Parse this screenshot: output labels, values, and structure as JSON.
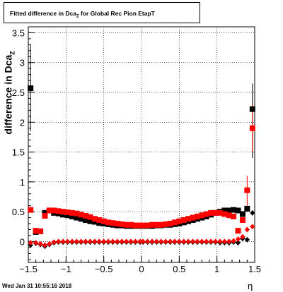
{
  "title_prefix": "Fitted difference in Dca",
  "title_sub": "Z",
  "title_suffix": " for Global Rec Pion EtapT",
  "ylabel": "difference in Dca",
  "ylabel_sub": "Z",
  "xlabel": "η",
  "timestamp": "Wed Jan 31 10:55:16 2018",
  "chart_data": {
    "type": "scatter",
    "xlim": [
      -1.5,
      1.5
    ],
    "ylim": [
      -0.35,
      3.6
    ],
    "grid": true,
    "x_ticks": [
      -1.5,
      -1,
      -0.5,
      0,
      0.5,
      1,
      1.5
    ],
    "x_tick_labels": [
      "−1.5",
      "−1",
      "−0.5",
      "0",
      "0.5",
      "1",
      "1.5"
    ],
    "y_ticks": [
      0,
      0.5,
      1,
      1.5,
      2,
      2.5,
      3,
      3.5
    ],
    "y_tick_labels": [
      "0",
      "0.5",
      "1",
      "1.5",
      "2",
      "2.5",
      "3",
      "3.5"
    ],
    "series": [
      {
        "marker": "square",
        "color": "#000000",
        "x": [
          -1.47,
          -1.4,
          -1.34,
          -1.28,
          -1.22,
          -1.16,
          -1.1,
          -1.04,
          -0.98,
          -0.92,
          -0.86,
          -0.8,
          -0.74,
          -0.68,
          -0.62,
          -0.56,
          -0.5,
          -0.44,
          -0.38,
          -0.32,
          -0.26,
          -0.2,
          -0.14,
          -0.08,
          -0.02,
          0.02,
          0.08,
          0.14,
          0.2,
          0.26,
          0.32,
          0.38,
          0.44,
          0.5,
          0.56,
          0.62,
          0.68,
          0.74,
          0.8,
          0.86,
          0.92,
          0.98,
          1.04,
          1.1,
          1.16,
          1.22,
          1.28,
          1.34,
          1.4,
          1.47
        ],
        "y": [
          2.57,
          0.16,
          0.17,
          0.48,
          0.52,
          0.48,
          0.47,
          0.45,
          0.44,
          0.42,
          0.4,
          0.38,
          0.36,
          0.34,
          0.33,
          0.31,
          0.3,
          0.29,
          0.28,
          0.27,
          0.27,
          0.26,
          0.26,
          0.26,
          0.26,
          0.26,
          0.26,
          0.26,
          0.27,
          0.27,
          0.28,
          0.28,
          0.29,
          0.3,
          0.32,
          0.34,
          0.36,
          0.38,
          0.4,
          0.42,
          0.45,
          0.48,
          0.5,
          0.52,
          0.52,
          0.53,
          0.52,
          0.46,
          0.55,
          2.22
        ]
      },
      {
        "marker": "diamond",
        "color": "#000000",
        "x": [
          -1.47,
          -1.4,
          -1.34,
          -1.28,
          -1.22,
          -1.16,
          -1.1,
          -1.04,
          -0.98,
          -0.92,
          -0.86,
          -0.8,
          -0.74,
          -0.68,
          -0.62,
          -0.56,
          -0.5,
          -0.44,
          -0.38,
          -0.32,
          -0.26,
          -0.2,
          -0.14,
          -0.08,
          -0.02,
          0.02,
          0.08,
          0.14,
          0.2,
          0.26,
          0.32,
          0.38,
          0.44,
          0.5,
          0.56,
          0.62,
          0.68,
          0.74,
          0.8,
          0.86,
          0.92,
          0.98,
          1.04,
          1.1,
          1.16,
          1.22,
          1.28,
          1.34,
          1.4,
          1.47
        ],
        "y": [
          -0.06,
          -0.03,
          -0.05,
          -0.08,
          -0.05,
          -0.02,
          -0.01,
          -0.01,
          -0.01,
          -0.01,
          -0.01,
          -0.01,
          -0.01,
          -0.01,
          -0.01,
          -0.01,
          -0.01,
          -0.01,
          -0.01,
          -0.01,
          -0.01,
          -0.01,
          -0.01,
          -0.01,
          -0.01,
          -0.01,
          -0.01,
          -0.01,
          -0.01,
          -0.01,
          -0.01,
          -0.01,
          -0.01,
          -0.01,
          -0.01,
          -0.01,
          -0.01,
          -0.01,
          -0.01,
          -0.01,
          -0.01,
          -0.01,
          -0.02,
          -0.02,
          -0.02,
          -0.01,
          -0.02,
          0.05,
          0.03,
          0.48
        ]
      },
      {
        "marker": "square",
        "color": "#ff0000",
        "x": [
          -1.47,
          -1.4,
          -1.34,
          -1.28,
          -1.22,
          -1.16,
          -1.1,
          -1.04,
          -0.98,
          -0.92,
          -0.86,
          -0.8,
          -0.74,
          -0.68,
          -0.62,
          -0.56,
          -0.5,
          -0.44,
          -0.38,
          -0.32,
          -0.26,
          -0.2,
          -0.14,
          -0.08,
          -0.02,
          0.02,
          0.08,
          0.14,
          0.2,
          0.26,
          0.32,
          0.38,
          0.44,
          0.5,
          0.56,
          0.62,
          0.68,
          0.74,
          0.8,
          0.86,
          0.92,
          0.98,
          1.04,
          1.1,
          1.16,
          1.22,
          1.28,
          1.34,
          1.4,
          1.47
        ],
        "y": [
          0.53,
          0.18,
          0.17,
          0.43,
          0.52,
          0.52,
          0.51,
          0.5,
          0.49,
          0.48,
          0.47,
          0.45,
          0.43,
          0.41,
          0.38,
          0.36,
          0.34,
          0.32,
          0.31,
          0.3,
          0.29,
          0.28,
          0.28,
          0.27,
          0.27,
          0.27,
          0.27,
          0.28,
          0.28,
          0.28,
          0.29,
          0.3,
          0.32,
          0.34,
          0.36,
          0.38,
          0.4,
          0.42,
          0.44,
          0.46,
          0.48,
          0.48,
          0.48,
          0.46,
          0.44,
          0.42,
          0.18,
          0.36,
          0.86,
          1.9
        ]
      },
      {
        "marker": "diamond",
        "color": "#ff0000",
        "x": [
          -1.47,
          -1.4,
          -1.34,
          -1.28,
          -1.22,
          -1.16,
          -1.1,
          -1.04,
          -0.98,
          -0.92,
          -0.86,
          -0.8,
          -0.74,
          -0.68,
          -0.62,
          -0.56,
          -0.5,
          -0.44,
          -0.38,
          -0.32,
          -0.26,
          -0.2,
          -0.14,
          -0.08,
          -0.02,
          0.02,
          0.08,
          0.14,
          0.2,
          0.26,
          0.32,
          0.38,
          0.44,
          0.5,
          0.56,
          0.62,
          0.68,
          0.74,
          0.8,
          0.86,
          0.92,
          0.98,
          1.04,
          1.1,
          1.16,
          1.22,
          1.28,
          1.34,
          1.4,
          1.47
        ],
        "y": [
          -0.02,
          -0.02,
          -0.04,
          -0.06,
          -0.04,
          -0.01,
          0.0,
          0.0,
          0.0,
          0.0,
          0.0,
          0.0,
          0.0,
          0.0,
          0.0,
          0.0,
          0.0,
          0.0,
          0.0,
          0.0,
          0.0,
          0.0,
          0.0,
          0.0,
          0.0,
          0.0,
          0.0,
          0.0,
          0.0,
          0.0,
          0.0,
          0.0,
          0.0,
          0.0,
          0.0,
          0.0,
          0.0,
          0.0,
          0.0,
          0.0,
          0.0,
          0.0,
          0.0,
          0.0,
          0.0,
          0.01,
          0.04,
          0.08,
          0.2,
          0.25
        ]
      }
    ],
    "error_bars": [
      {
        "series": 0,
        "x": -1.47,
        "y_low": 1.85,
        "y_high": 3.3
      },
      {
        "series": 0,
        "x": 1.47,
        "y_low": 1.4,
        "y_high": 2.65
      },
      {
        "series": 2,
        "x": 1.47,
        "y_low": 1.5,
        "y_high": 2.3
      },
      {
        "series": 2,
        "x": 1.4,
        "y_low": 0.6,
        "y_high": 1.1
      }
    ]
  }
}
